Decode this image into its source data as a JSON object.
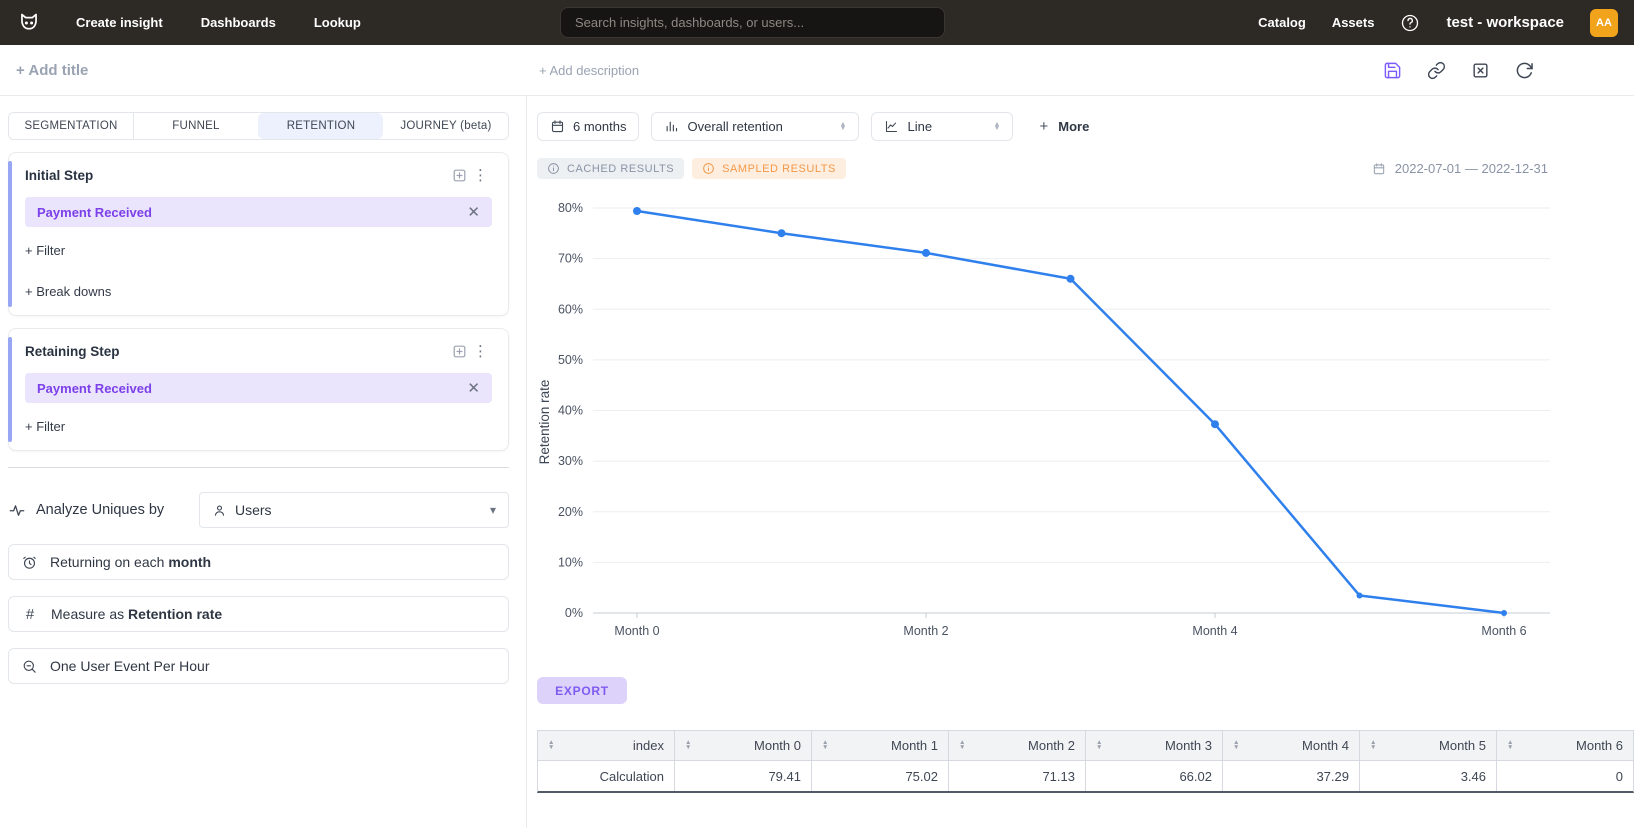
{
  "topbar": {
    "nav": [
      {
        "label": "Create insight"
      },
      {
        "label": "Dashboards"
      },
      {
        "label": "Lookup"
      }
    ],
    "search_placeholder": "Search insights, dashboards, or users...",
    "right_nav": [
      {
        "label": "Catalog"
      },
      {
        "label": "Assets"
      }
    ],
    "workspace": "test - workspace",
    "avatar_initials": "AA",
    "avatar_color": "#f2a31c"
  },
  "header": {
    "add_title": "+ Add title",
    "add_description": "+ Add description"
  },
  "builder": {
    "tabs": [
      {
        "label": "SEGMENTATION",
        "active": false
      },
      {
        "label": "FUNNEL",
        "active": false
      },
      {
        "label": "RETENTION",
        "active": true
      },
      {
        "label": "JOURNEY (beta)",
        "active": false
      }
    ],
    "initial_step": {
      "title": "Initial Step",
      "event": "Payment Received",
      "filter_action": "+ Filter",
      "breakdown_action": "+ Break downs"
    },
    "retaining_step": {
      "title": "Retaining Step",
      "event": "Payment Received",
      "filter_action": "+ Filter"
    },
    "analyze_uniques_label": "Analyze Uniques by",
    "analyze_uniques_value": "Users",
    "returning_prefix": "Returning on each ",
    "returning_bold": "month",
    "measure_prefix": "Measure as ",
    "measure_bold": "Retention rate",
    "dedupe_label": "One User Event Per Hour"
  },
  "controls": {
    "date_button": "6 months",
    "retention_type": "Overall retention",
    "chart_type": "Line",
    "more_plus": "+",
    "more_label": "More"
  },
  "status": {
    "cached_badge": "CACHED RESULTS",
    "sampled_badge": "SAMPLED RESULTS",
    "date_range": "2022-07-01 — 2022-12-31"
  },
  "chart_data": {
    "type": "line",
    "ylabel": "Retention rate",
    "categories": [
      "Month 0",
      "Month 1",
      "Month 2",
      "Month 3",
      "Month 4",
      "Month 5",
      "Month 6"
    ],
    "values": [
      79.41,
      75.02,
      71.13,
      66.02,
      37.29,
      3.46,
      0
    ],
    "x_labeled_ticks": [
      0,
      2,
      4,
      6
    ],
    "y_ticks": [
      0,
      10,
      20,
      30,
      40,
      50,
      60,
      70,
      80
    ],
    "ylim": [
      0,
      80
    ],
    "grid": true,
    "legend": "none",
    "line_color": "#2f80ed",
    "tick_color": "#4a5362",
    "grid_color": "#eceef1",
    "axis_color": "#c7ccd3"
  },
  "export_label": "EXPORT",
  "table": {
    "columns": [
      "index",
      "Month 0",
      "Month 1",
      "Month 2",
      "Month 3",
      "Month 4",
      "Month 5",
      "Month 6"
    ],
    "rows": [
      [
        "Calculation",
        "79.41",
        "75.02",
        "71.13",
        "66.02",
        "37.29",
        "3.46",
        "0"
      ]
    ]
  }
}
